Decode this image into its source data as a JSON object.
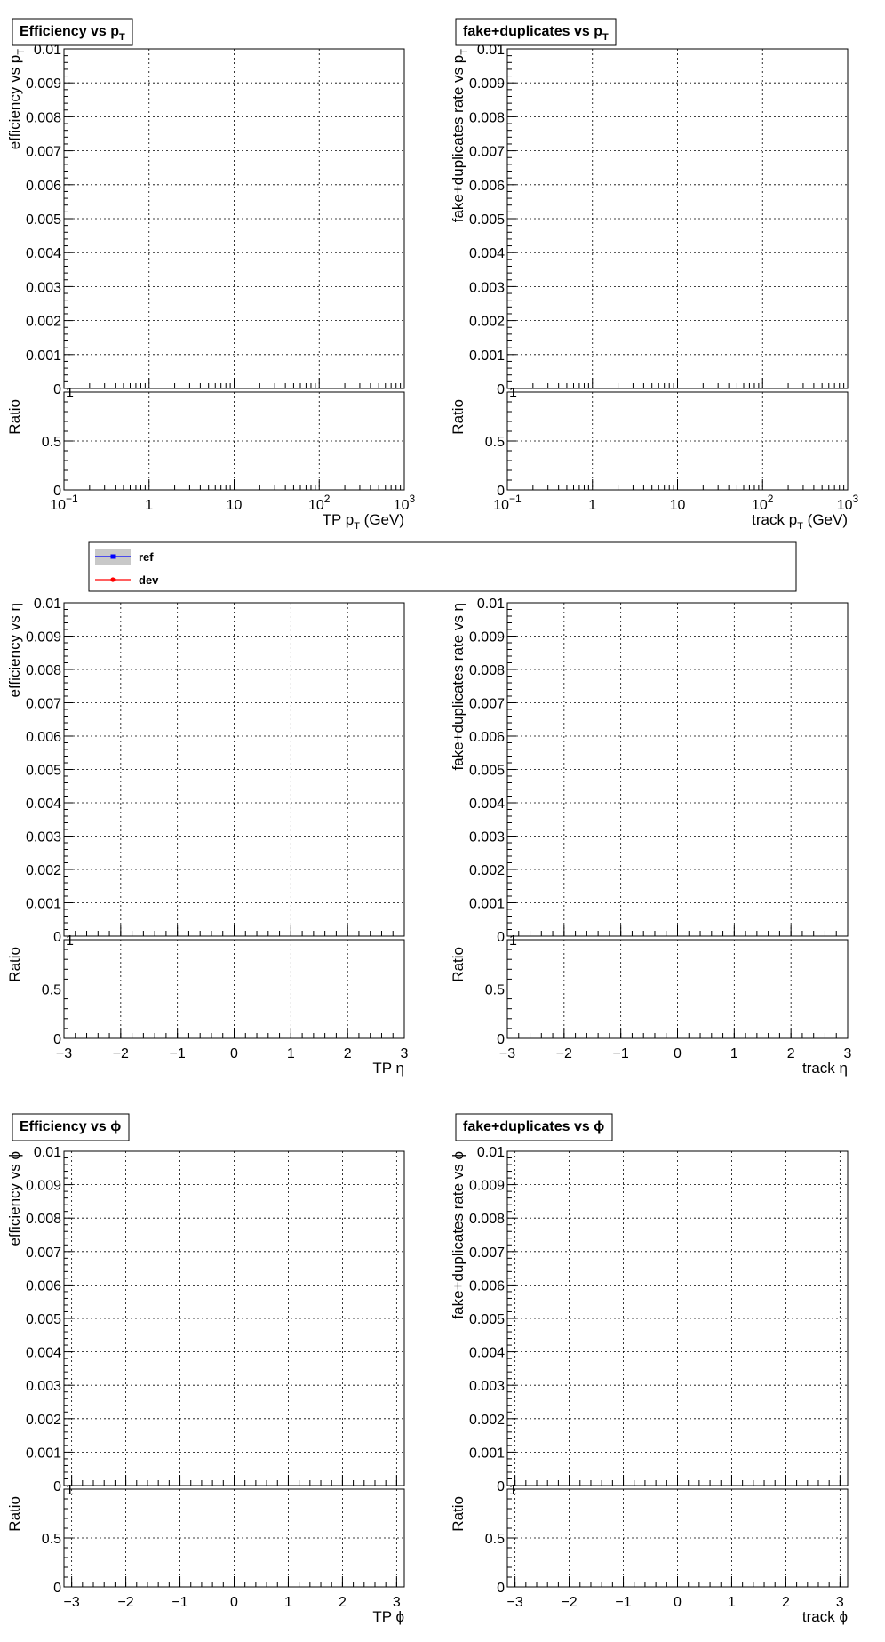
{
  "chart_data": [
    {
      "type": "line",
      "title_main": "Efficiency vs p",
      "title_sub": "T",
      "ylabel": "efficiency vs p",
      "ylabel_sub": "T",
      "ratio_ylabel": "Ratio",
      "xlabel_main": "TP p",
      "xlabel_sub": "T",
      "xlabel_unit": " (GeV)",
      "x_scale": "log",
      "xlim": [
        0.1,
        1000
      ],
      "ylim": [
        0,
        0.01
      ],
      "ratio_ylim": [
        0,
        1
      ],
      "y_ticks": [
        "0",
        "0.001",
        "0.002",
        "0.003",
        "0.004",
        "0.005",
        "0.006",
        "0.007",
        "0.008",
        "0.009",
        "0.01"
      ],
      "ratio_ticks": [
        "0",
        "0.5",
        "1"
      ],
      "x_ticks": [
        {
          "base": "10",
          "exp": "−1"
        },
        {
          "base": "1",
          "exp": ""
        },
        {
          "base": "10",
          "exp": ""
        },
        {
          "base": "10",
          "exp": "2"
        },
        {
          "base": "10",
          "exp": "3"
        }
      ],
      "grid": true,
      "series": []
    },
    {
      "type": "line",
      "title_main": "fake+duplicates vs p",
      "title_sub": "T",
      "ylabel": "fake+duplicates rate vs p",
      "ylabel_sub": "T",
      "ratio_ylabel": "Ratio",
      "xlabel_main": "track p",
      "xlabel_sub": "T",
      "xlabel_unit": " (GeV)",
      "x_scale": "log",
      "xlim": [
        0.1,
        1000
      ],
      "ylim": [
        0,
        0.01
      ],
      "ratio_ylim": [
        0,
        1
      ],
      "y_ticks": [
        "0",
        "0.001",
        "0.002",
        "0.003",
        "0.004",
        "0.005",
        "0.006",
        "0.007",
        "0.008",
        "0.009",
        "0.01"
      ],
      "ratio_ticks": [
        "0",
        "0.5",
        "1"
      ],
      "x_ticks": [
        {
          "base": "10",
          "exp": "−1"
        },
        {
          "base": "1",
          "exp": ""
        },
        {
          "base": "10",
          "exp": ""
        },
        {
          "base": "10",
          "exp": "2"
        },
        {
          "base": "10",
          "exp": "3"
        }
      ],
      "grid": true,
      "series": []
    },
    {
      "type": "line",
      "title_main": "",
      "title_sub": "",
      "ylabel": "efficiency vs η",
      "ylabel_sub": "",
      "ratio_ylabel": "Ratio",
      "xlabel_main": "TP η",
      "xlabel_sub": "",
      "xlabel_unit": "",
      "x_scale": "linear",
      "xlim": [
        -3,
        3
      ],
      "ylim": [
        0,
        0.01
      ],
      "ratio_ylim": [
        0,
        1
      ],
      "y_ticks": [
        "0",
        "0.001",
        "0.002",
        "0.003",
        "0.004",
        "0.005",
        "0.006",
        "0.007",
        "0.008",
        "0.009",
        "0.01"
      ],
      "ratio_ticks": [
        "0",
        "0.5",
        "1"
      ],
      "x_ticks": [
        {
          "base": "−3",
          "exp": ""
        },
        {
          "base": "−2",
          "exp": ""
        },
        {
          "base": "−1",
          "exp": ""
        },
        {
          "base": "0",
          "exp": ""
        },
        {
          "base": "1",
          "exp": ""
        },
        {
          "base": "2",
          "exp": ""
        },
        {
          "base": "3",
          "exp": ""
        }
      ],
      "grid": true,
      "series": []
    },
    {
      "type": "line",
      "title_main": "",
      "title_sub": "",
      "ylabel": "fake+duplicates rate vs η",
      "ylabel_sub": "",
      "ratio_ylabel": "Ratio",
      "xlabel_main": "track η",
      "xlabel_sub": "",
      "xlabel_unit": "",
      "x_scale": "linear",
      "xlim": [
        -3,
        3
      ],
      "ylim": [
        0,
        0.01
      ],
      "ratio_ylim": [
        0,
        1
      ],
      "y_ticks": [
        "0",
        "0.001",
        "0.002",
        "0.003",
        "0.004",
        "0.005",
        "0.006",
        "0.007",
        "0.008",
        "0.009",
        "0.01"
      ],
      "ratio_ticks": [
        "0",
        "0.5",
        "1"
      ],
      "x_ticks": [
        {
          "base": "−3",
          "exp": ""
        },
        {
          "base": "−2",
          "exp": ""
        },
        {
          "base": "−1",
          "exp": ""
        },
        {
          "base": "0",
          "exp": ""
        },
        {
          "base": "1",
          "exp": ""
        },
        {
          "base": "2",
          "exp": ""
        },
        {
          "base": "3",
          "exp": ""
        }
      ],
      "grid": true,
      "series": []
    },
    {
      "type": "line",
      "title_main": "Efficiency vs ϕ",
      "title_sub": "",
      "ylabel": "efficiency vs ϕ",
      "ylabel_sub": "",
      "ratio_ylabel": "Ratio",
      "xlabel_main": "TP ϕ",
      "xlabel_sub": "",
      "xlabel_unit": "",
      "x_scale": "linear",
      "xlim": [
        -3.1416,
        3.1416
      ],
      "ylim": [
        0,
        0.01
      ],
      "ratio_ylim": [
        0,
        1
      ],
      "y_ticks": [
        "0",
        "0.001",
        "0.002",
        "0.003",
        "0.004",
        "0.005",
        "0.006",
        "0.007",
        "0.008",
        "0.009",
        "0.01"
      ],
      "ratio_ticks": [
        "0",
        "0.5",
        "1"
      ],
      "x_ticks": [
        {
          "base": "−3",
          "exp": ""
        },
        {
          "base": "−2",
          "exp": ""
        },
        {
          "base": "−1",
          "exp": ""
        },
        {
          "base": "0",
          "exp": ""
        },
        {
          "base": "1",
          "exp": ""
        },
        {
          "base": "2",
          "exp": ""
        },
        {
          "base": "3",
          "exp": ""
        }
      ],
      "grid": true,
      "series": []
    },
    {
      "type": "line",
      "title_main": "fake+duplicates vs ϕ",
      "title_sub": "",
      "ylabel": "fake+duplicates rate vs ϕ",
      "ylabel_sub": "",
      "ratio_ylabel": "Ratio",
      "xlabel_main": "track ϕ",
      "xlabel_sub": "",
      "xlabel_unit": "",
      "x_scale": "linear",
      "xlim": [
        -3.1416,
        3.1416
      ],
      "ylim": [
        0,
        0.01
      ],
      "ratio_ylim": [
        0,
        1
      ],
      "y_ticks": [
        "0",
        "0.001",
        "0.002",
        "0.003",
        "0.004",
        "0.005",
        "0.006",
        "0.007",
        "0.008",
        "0.009",
        "0.01"
      ],
      "ratio_ticks": [
        "0",
        "0.5",
        "1"
      ],
      "x_ticks": [
        {
          "base": "−3",
          "exp": ""
        },
        {
          "base": "−2",
          "exp": ""
        },
        {
          "base": "−1",
          "exp": ""
        },
        {
          "base": "0",
          "exp": ""
        },
        {
          "base": "1",
          "exp": ""
        },
        {
          "base": "2",
          "exp": ""
        },
        {
          "base": "3",
          "exp": ""
        }
      ],
      "grid": true,
      "series": []
    }
  ],
  "legend": {
    "entries": [
      {
        "label": "ref",
        "color": "#0000ff",
        "band_color": "#c8c8c8"
      },
      {
        "label": "dev",
        "color": "#ff0000"
      }
    ]
  },
  "colors": {
    "axis": "#000000",
    "grid": "#000000"
  }
}
